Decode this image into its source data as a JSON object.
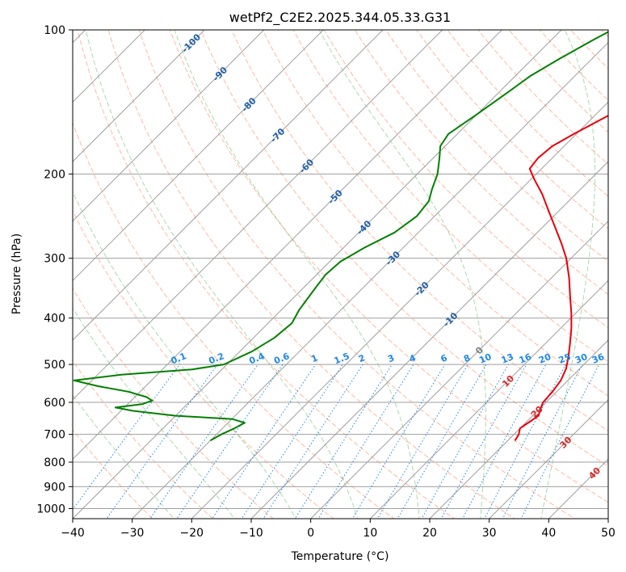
{
  "chart_data": {
    "type": "skew-t",
    "title": "wetPf2_C2E2.2025.344.05.33.G31",
    "xlabel": "Temperature (°C)",
    "ylabel": "Pressure (hPa)",
    "xlim": [
      -40,
      50
    ],
    "ylim": [
      1050,
      100
    ],
    "x_ticks": [
      "−40",
      "−30",
      "−20",
      "−10",
      "0",
      "10",
      "20",
      "30",
      "40",
      "50"
    ],
    "y_ticks": [
      {
        "p": 100,
        "label": "100"
      },
      {
        "p": 200,
        "label": "200"
      },
      {
        "p": 300,
        "label": "300"
      },
      {
        "p": 400,
        "label": "400"
      },
      {
        "p": 500,
        "label": "500"
      },
      {
        "p": 600,
        "label": "600"
      },
      {
        "p": 700,
        "label": "700"
      },
      {
        "p": 800,
        "label": "800"
      },
      {
        "p": 900,
        "label": "900"
      },
      {
        "p": 1000,
        "label": "1000"
      }
    ],
    "series": [
      {
        "name": "temperature",
        "color": "#e8000b",
        "points": [
          [
            721,
            21.2
          ],
          [
            700,
            20.8
          ],
          [
            680,
            20.0
          ],
          [
            660,
            20.5
          ],
          [
            640,
            21.0
          ],
          [
            620,
            20.2
          ],
          [
            600,
            19.5
          ],
          [
            570,
            19.3
          ],
          [
            540,
            18.8
          ],
          [
            510,
            17.7
          ],
          [
            480,
            16.0
          ],
          [
            450,
            14.0
          ],
          [
            420,
            11.8
          ],
          [
            390,
            9.2
          ],
          [
            360,
            6.2
          ],
          [
            330,
            3.0
          ],
          [
            300,
            -0.8
          ],
          [
            280,
            -4.0
          ],
          [
            260,
            -7.6
          ],
          [
            240,
            -11.5
          ],
          [
            220,
            -15.7
          ],
          [
            205,
            -19.5
          ],
          [
            195,
            -22.0
          ],
          [
            185,
            -22.4
          ],
          [
            175,
            -22.0
          ],
          [
            165,
            -20.4
          ],
          [
            150,
            -17.5
          ],
          [
            135,
            -14.5
          ],
          [
            120,
            -11.7
          ],
          [
            110,
            -9.3
          ],
          [
            100,
            -5.6
          ]
        ]
      },
      {
        "name": "dewpoint",
        "color": "#008000",
        "points": [
          [
            721,
            -30.0
          ],
          [
            700,
            -29.2
          ],
          [
            680,
            -28.0
          ],
          [
            662,
            -27.2
          ],
          [
            650,
            -30.0
          ],
          [
            640,
            -40.0
          ],
          [
            625,
            -48.0
          ],
          [
            615,
            -51.5
          ],
          [
            605,
            -47.5
          ],
          [
            595,
            -46.5
          ],
          [
            585,
            -48.0
          ],
          [
            570,
            -52.0
          ],
          [
            555,
            -58.0
          ],
          [
            540,
            -63.0
          ],
          [
            525,
            -56.0
          ],
          [
            512,
            -45.0
          ],
          [
            500,
            -40.5
          ],
          [
            470,
            -38.0
          ],
          [
            440,
            -36.5
          ],
          [
            410,
            -36.0
          ],
          [
            385,
            -37.0
          ],
          [
            365,
            -37.5
          ],
          [
            345,
            -38.0
          ],
          [
            325,
            -38.5
          ],
          [
            305,
            -38.2
          ],
          [
            285,
            -36.5
          ],
          [
            265,
            -34.0
          ],
          [
            245,
            -33.0
          ],
          [
            228,
            -33.5
          ],
          [
            215,
            -35.0
          ],
          [
            200,
            -36.6
          ],
          [
            185,
            -39.0
          ],
          [
            175,
            -40.8
          ],
          [
            165,
            -41.5
          ],
          [
            150,
            -40.0
          ],
          [
            135,
            -38.5
          ],
          [
            125,
            -37.5
          ],
          [
            115,
            -35.5
          ],
          [
            105,
            -33.0
          ],
          [
            100,
            -31.5
          ]
        ]
      }
    ],
    "dry_adiabats": [
      -30,
      -20,
      -10,
      0,
      10,
      20,
      30,
      40,
      50,
      60,
      70,
      80,
      90,
      100,
      110,
      120,
      130,
      140,
      150,
      160,
      170,
      180,
      190,
      200,
      210
    ],
    "moist_adiabats": [
      -20,
      -10,
      0,
      10,
      20,
      30,
      40
    ],
    "mixing_ratios": [
      {
        "w": 0.1,
        "label": "0.1"
      },
      {
        "w": 0.2,
        "label": "0.2"
      },
      {
        "w": 0.4,
        "label": "0.4"
      },
      {
        "w": 0.6,
        "label": "0.6"
      },
      {
        "w": 1,
        "label": "1"
      },
      {
        "w": 1.5,
        "label": "1.5"
      },
      {
        "w": 2,
        "label": "2"
      },
      {
        "w": 3,
        "label": "3"
      },
      {
        "w": 4,
        "label": "4"
      },
      {
        "w": 6,
        "label": "6"
      },
      {
        "w": 8,
        "label": "8"
      },
      {
        "w": 10,
        "label": "10"
      },
      {
        "w": 13,
        "label": "13"
      },
      {
        "w": 16,
        "label": "16"
      },
      {
        "w": 20,
        "label": "20"
      },
      {
        "w": 25,
        "label": "25"
      },
      {
        "w": 30,
        "label": "30"
      },
      {
        "w": 36,
        "label": "36"
      }
    ],
    "isotherm_labels": [
      {
        "t": -100,
        "label": "-100",
        "color": "#1f5fa8"
      },
      {
        "t": -90,
        "label": "-90",
        "color": "#1f5fa8"
      },
      {
        "t": -80,
        "label": "-80",
        "color": "#1f5fa8"
      },
      {
        "t": -70,
        "label": "-70",
        "color": "#1f5fa8"
      },
      {
        "t": -60,
        "label": "-60",
        "color": "#1f5fa8"
      },
      {
        "t": -50,
        "label": "-50",
        "color": "#1f5fa8"
      },
      {
        "t": -40,
        "label": "-40",
        "color": "#1f5fa8"
      },
      {
        "t": -30,
        "label": "-30",
        "color": "#1f5fa8"
      },
      {
        "t": -20,
        "label": "-20",
        "color": "#1f5fa8"
      },
      {
        "t": -10,
        "label": "-10",
        "color": "#1f5fa8"
      },
      {
        "t": 0,
        "label": "0",
        "color": "#808080"
      },
      {
        "t": 10,
        "label": "10",
        "color": "#d62728"
      },
      {
        "t": 20,
        "label": "20",
        "color": "#d62728"
      },
      {
        "t": 30,
        "label": "30",
        "color": "#d62728"
      },
      {
        "t": 40,
        "label": "40",
        "color": "#d62728"
      }
    ]
  }
}
